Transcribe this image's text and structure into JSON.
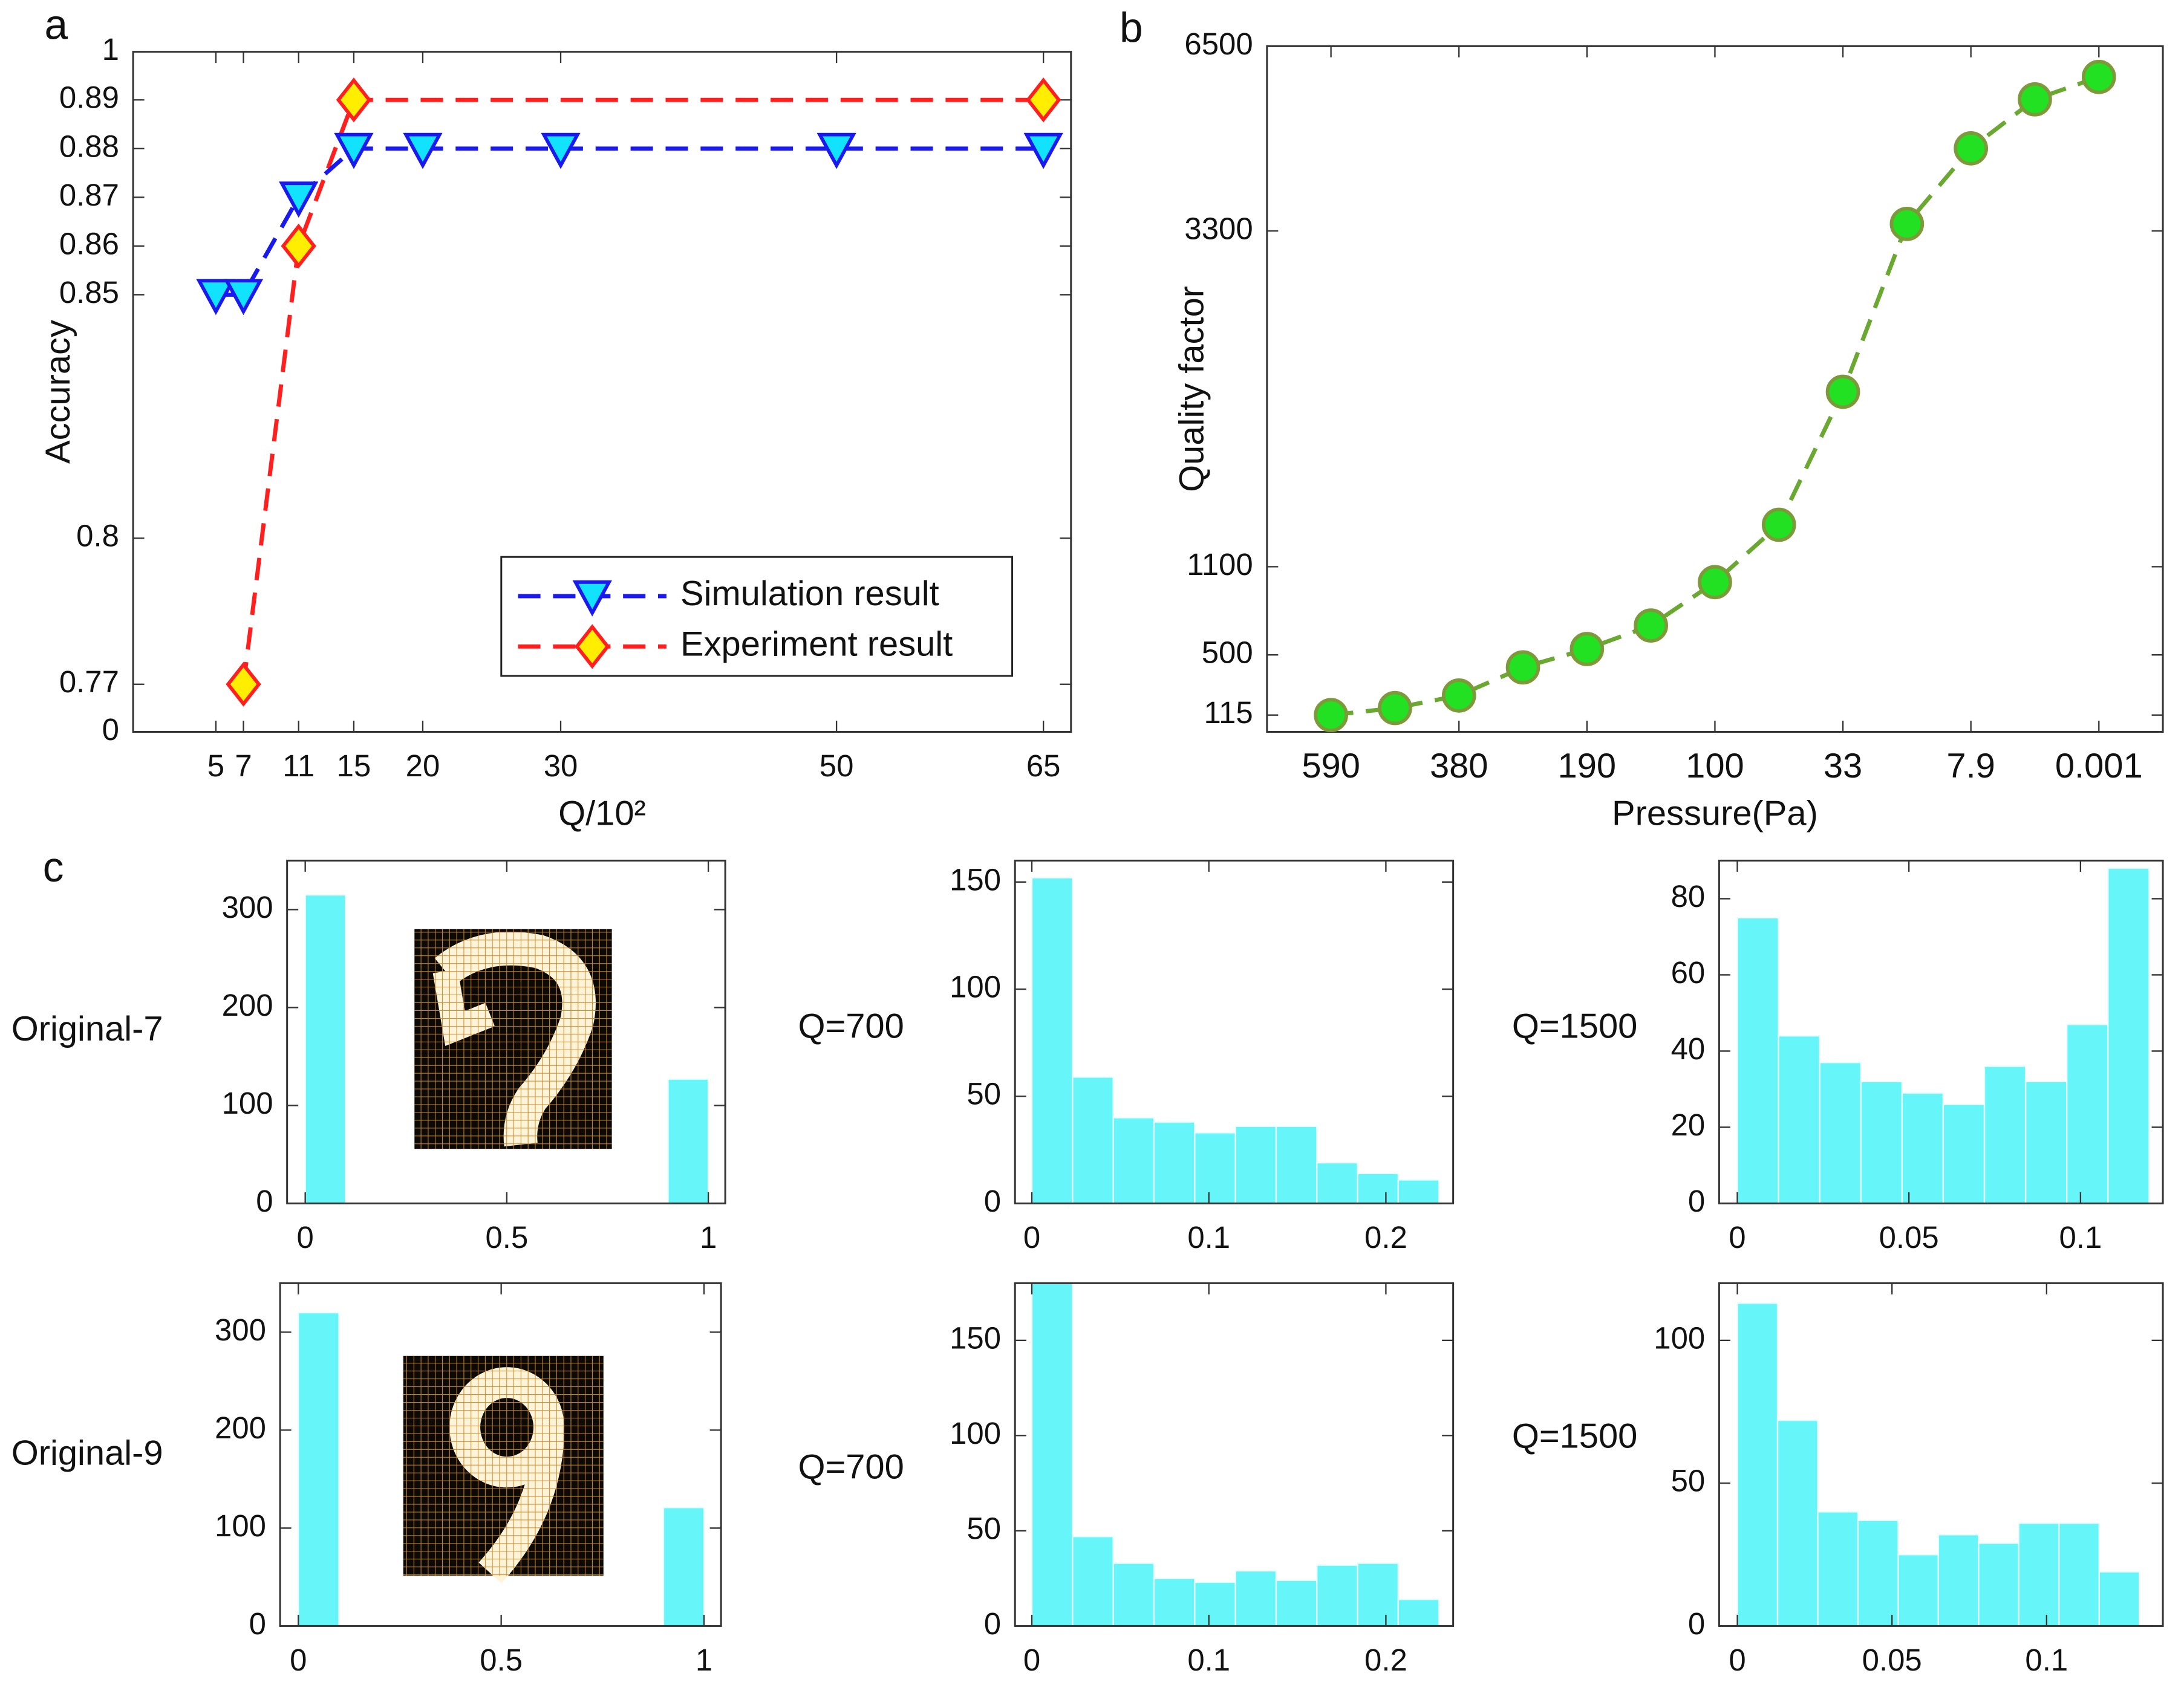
{
  "chart_data": [
    {
      "type": "line",
      "panel": "a",
      "ylabel": "Accuracy",
      "xlabel": "Q/10²",
      "xlim": [
        -1,
        67
      ],
      "xticks": [
        5,
        7,
        11,
        15,
        20,
        30,
        50,
        65
      ],
      "ylim": [
        0,
        1
      ],
      "yticks": [
        0,
        0.77,
        0.8,
        0.85,
        0.86,
        0.87,
        0.88,
        0.89,
        1
      ],
      "legend": "lower right",
      "series": [
        {
          "name": "Simulation result",
          "color": "#1a1aee",
          "marker": "triangle-down",
          "marker_fill": "#11e3ff",
          "x": [
            5,
            7,
            11,
            15,
            20,
            30,
            50,
            65
          ],
          "values": [
            0.85,
            0.85,
            0.87,
            0.88,
            0.88,
            0.88,
            0.88,
            0.88
          ]
        },
        {
          "name": "Experiment result",
          "color": "#ff1f1f",
          "marker": "diamond",
          "marker_fill": "#ffee00",
          "x": [
            7,
            11,
            15,
            65
          ],
          "values": [
            0.77,
            0.86,
            0.89,
            0.89
          ]
        }
      ]
    },
    {
      "type": "line",
      "panel": "b",
      "ylabel": "Quality factor",
      "xlabel": "Pressure(Pa)",
      "categories": [
        "590",
        null,
        "380",
        null,
        "190",
        null,
        "100",
        null,
        "33",
        null,
        "7.9",
        null,
        "0.001"
      ],
      "values": [
        115,
        160,
        240,
        420,
        540,
        700,
        995,
        1375,
        2246,
        3421,
        4730,
        5579,
        5967
      ],
      "ylim": [
        0,
        6500
      ],
      "yticks": [
        115,
        500,
        1100,
        3300,
        6500
      ],
      "color": "#6aa832",
      "marker": "circle",
      "marker_fill": "#22e022"
    },
    {
      "type": "histogram",
      "panel": "c",
      "label": "Original-7",
      "color": "#66f6f9",
      "bins": [
        0,
        0.1,
        0.2,
        0.3,
        0.4,
        0.5,
        0.6,
        0.7,
        0.8,
        0.9,
        1
      ],
      "values": [
        315,
        0,
        0,
        0,
        0,
        0,
        0,
        0,
        0,
        127
      ],
      "xlim": [
        -0.045,
        1.042
      ],
      "xticks": [
        0,
        0.5,
        1
      ],
      "ylim": [
        0,
        350
      ],
      "yticks": [
        0,
        100,
        200,
        300
      ]
    },
    {
      "type": "histogram",
      "label": "Q=700",
      "color": "#66f6f9",
      "bins": [
        0,
        0.023,
        0.046,
        0.069,
        0.092,
        0.115,
        0.138,
        0.161,
        0.184,
        0.207,
        0.23
      ],
      "values": [
        152,
        59,
        40,
        38,
        33,
        36,
        36,
        19,
        14,
        11
      ],
      "xlim": [
        -0.0095,
        0.238
      ],
      "xticks": [
        0,
        0.1,
        0.2
      ],
      "ylim": [
        0,
        160
      ],
      "yticks": [
        0,
        50,
        100,
        150
      ]
    },
    {
      "type": "histogram",
      "label": "Q=1500",
      "color": "#66f6f9",
      "bins": [
        0,
        0.012,
        0.024,
        0.036,
        0.048,
        0.06,
        0.072,
        0.084,
        0.096,
        0.108,
        0.12
      ],
      "values": [
        75,
        44,
        37,
        32,
        29,
        26,
        36,
        32,
        47,
        88
      ],
      "xlim": [
        -0.0053,
        0.124
      ],
      "xticks": [
        0,
        0.05,
        0.1
      ],
      "ylim": [
        0,
        90
      ],
      "yticks": [
        0,
        20,
        40,
        60,
        80
      ]
    },
    {
      "type": "histogram",
      "label": "Original-9",
      "color": "#66f6f9",
      "bins": [
        0,
        0.1,
        0.2,
        0.3,
        0.4,
        0.5,
        0.6,
        0.7,
        0.8,
        0.9,
        1
      ],
      "values": [
        320,
        0,
        0,
        0,
        0,
        0,
        0,
        0,
        0,
        121
      ],
      "xlim": [
        -0.045,
        1.042
      ],
      "xticks": [
        0,
        0.5,
        1
      ],
      "ylim": [
        0,
        350
      ],
      "yticks": [
        0,
        100,
        200,
        300
      ]
    },
    {
      "type": "histogram",
      "label": "Q=700",
      "color": "#66f6f9",
      "bins": [
        0,
        0.023,
        0.046,
        0.069,
        0.092,
        0.115,
        0.138,
        0.161,
        0.184,
        0.207,
        0.23
      ],
      "values": [
        180,
        47,
        33,
        25,
        23,
        29,
        24,
        32,
        33,
        14
      ],
      "xlim": [
        -0.0095,
        0.238
      ],
      "xticks": [
        0,
        0.1,
        0.2
      ],
      "ylim": [
        0,
        180
      ],
      "yticks": [
        0,
        50,
        100,
        150
      ]
    },
    {
      "type": "histogram",
      "label": "Q=1500",
      "color": "#66f6f9",
      "bins": [
        0,
        0.013,
        0.026,
        0.039,
        0.052,
        0.065,
        0.078,
        0.091,
        0.104,
        0.117,
        0.13
      ],
      "values": [
        113,
        72,
        40,
        37,
        25,
        32,
        29,
        36,
        36,
        19
      ],
      "xlim": [
        -0.0059,
        0.1376
      ],
      "xticks": [
        0,
        0.05,
        0.1
      ],
      "ylim": [
        0,
        120
      ],
      "yticks": [
        0,
        50,
        100
      ]
    }
  ]
}
